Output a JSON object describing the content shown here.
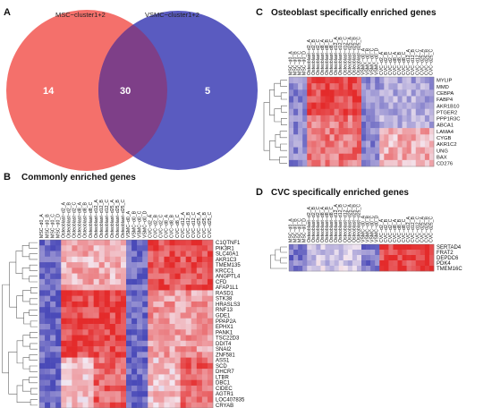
{
  "colors": {
    "venn_left": "#f4706b",
    "venn_right": "#5a5bc0",
    "venn_overlap": "#7e3f88",
    "heat_low": "#4a4ab8",
    "heat_mid": "#f4e8f1",
    "heat_high": "#e42b2b"
  },
  "panels": {
    "A": {
      "label": "A"
    },
    "B": {
      "label": "B",
      "title": "Commonly enriched genes"
    },
    "C": {
      "label": "C",
      "title": "Osteoblast specifically enriched genes"
    },
    "D": {
      "label": "D",
      "title": "CVC specifically enriched genes"
    }
  },
  "venn": {
    "set_left": "MSC−cluster1+2",
    "set_right": "VSMC−cluster1+2",
    "only_left": "14",
    "both": "30",
    "only_right": "5"
  },
  "columns": [
    "MSC−d0_A",
    "MSC−d0_B",
    "MSC−d0_C",
    "MSC−d0_D",
    "Osteoblast−d2_A",
    "Osteoblast−d2_B",
    "Osteoblast−d2_C",
    "Osteoblast−d8_A",
    "Osteoblast−d8_B",
    "Osteoblast−d8_C",
    "Osteoblast−d12_A",
    "Osteoblast−d12_B",
    "Osteoblast−d12_C",
    "Osteoblast−d25_A",
    "Osteoblast−d25_B",
    "Osteoblast−d25_C",
    "VSMC−d0_A",
    "VSMC−d0_B",
    "VSMC−d0_C",
    "VSMC−d0_D",
    "CVC−d2_A",
    "CVC−d2_B",
    "CVC−d2_C",
    "CVC−d8_A",
    "CVC−d8_B",
    "CVC−d8_C",
    "CVC−d12_A",
    "CVC−d12_B",
    "CVC−d12_C",
    "CVC−d25_A",
    "CVC−d25_B",
    "CVC−d25_C"
  ],
  "genes_B": [
    "C1QTNF1",
    "PIK3R1",
    "SLC40A1",
    "AKR1C3",
    "TMEM135",
    "KRCC1",
    "ANGPTL4",
    "CFD",
    "AFAP1L1",
    "RASD1",
    "STK38",
    "HRASLS3",
    "RNF13",
    "GDE1",
    "PPAP2A",
    "EPHX1",
    "PANK1",
    "TSC22D3",
    "DDIT4",
    "SNAI2",
    "ZNF581",
    "ASS1",
    "SCD",
    "DHCR7",
    "LTBR",
    "DBC1",
    "CIDEC",
    "AGTR1",
    "LOC407835",
    "CRYAB"
  ],
  "genes_C": [
    "MYLIP",
    "MMD",
    "CEBPA",
    "FABP4",
    "AKR1B10",
    "PTGER2",
    "PPP1R3C",
    "ABCA1",
    "LAMA4",
    "CYGB",
    "AKR1C2",
    "UNG",
    "BAX",
    "CD276"
  ],
  "genes_D": [
    "SERTAD4",
    "FRAT2",
    "DEPDC6",
    "PDK4",
    "TMEM16C"
  ]
}
